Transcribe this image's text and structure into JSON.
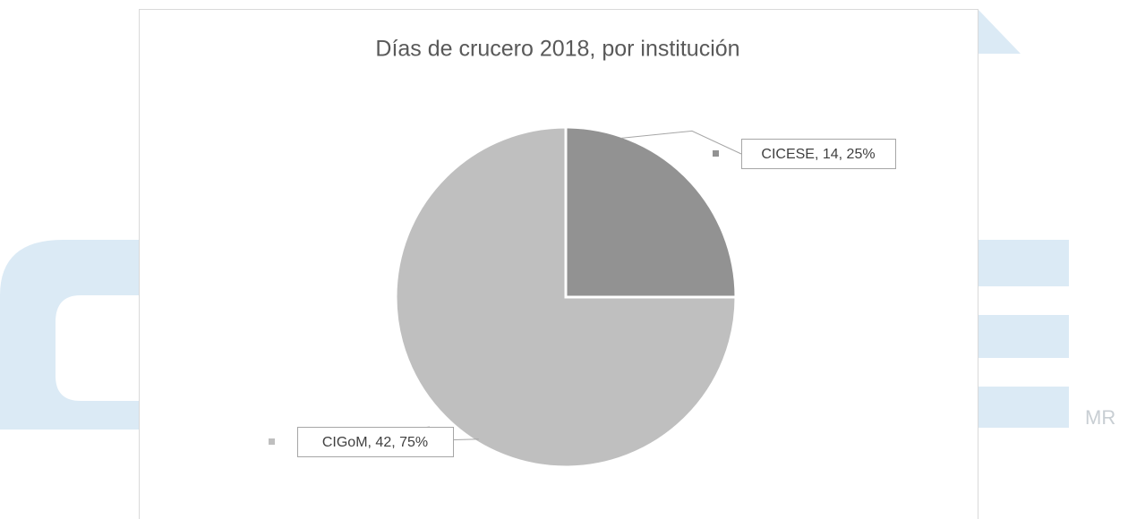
{
  "background_text": "MR",
  "chart_data": {
    "type": "pie",
    "title": "Días de crucero 2018, por institución",
    "categories": [
      "CICESE",
      "CIGoM"
    ],
    "values": [
      14,
      42
    ],
    "value_labels": [
      "CICESE, 14, 25%",
      "CIGoM, 42, 75%"
    ],
    "colors": [
      "#929292",
      "#bfbfbf"
    ]
  }
}
